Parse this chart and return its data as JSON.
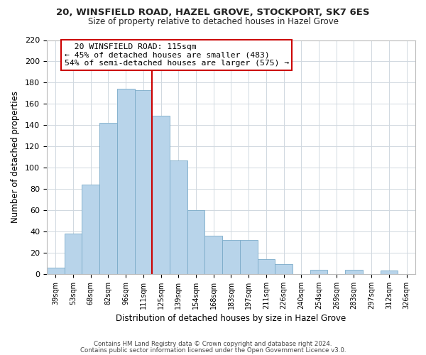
{
  "title": "20, WINSFIELD ROAD, HAZEL GROVE, STOCKPORT, SK7 6ES",
  "subtitle": "Size of property relative to detached houses in Hazel Grove",
  "xlabel": "Distribution of detached houses by size in Hazel Grove",
  "ylabel": "Number of detached properties",
  "footer_line1": "Contains HM Land Registry data © Crown copyright and database right 2024.",
  "footer_line2": "Contains public sector information licensed under the Open Government Licence v3.0.",
  "categories": [
    "39sqm",
    "53sqm",
    "68sqm",
    "82sqm",
    "96sqm",
    "111sqm",
    "125sqm",
    "139sqm",
    "154sqm",
    "168sqm",
    "183sqm",
    "197sqm",
    "211sqm",
    "226sqm",
    "240sqm",
    "254sqm",
    "269sqm",
    "283sqm",
    "297sqm",
    "312sqm",
    "326sqm"
  ],
  "values": [
    6,
    38,
    84,
    142,
    174,
    173,
    149,
    107,
    60,
    36,
    32,
    32,
    14,
    9,
    0,
    4,
    0,
    4,
    0,
    3,
    0
  ],
  "bar_color": "#b8d4ea",
  "bar_edge_color": "#7aaac8",
  "vline_x_index": 5.5,
  "vline_color": "#cc0000",
  "annotation_title": "20 WINSFIELD ROAD: 115sqm",
  "annotation_line1": "← 45% of detached houses are smaller (483)",
  "annotation_line2": "54% of semi-detached houses are larger (575) →",
  "annotation_box_color": "#ffffff",
  "annotation_box_edge_color": "#cc0000",
  "ylim": [
    0,
    220
  ],
  "yticks": [
    0,
    20,
    40,
    60,
    80,
    100,
    120,
    140,
    160,
    180,
    200,
    220
  ],
  "background_color": "#ffffff",
  "grid_color": "#d0d8e0"
}
